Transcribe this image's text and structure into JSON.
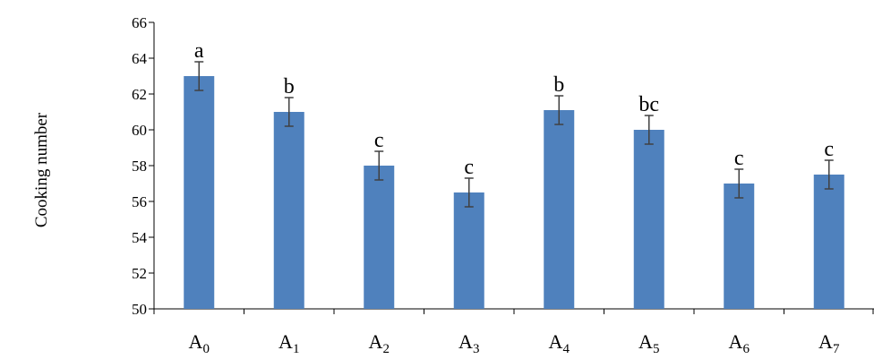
{
  "chart_data": {
    "type": "bar",
    "ylabel": "Cooking number",
    "ylim": [
      50,
      66
    ],
    "yticks": [
      50,
      52,
      54,
      56,
      58,
      60,
      62,
      64,
      66
    ],
    "grid": false,
    "legend": "none",
    "categories": [
      {
        "base": "A",
        "sub": "0"
      },
      {
        "base": "A",
        "sub": "1"
      },
      {
        "base": "A",
        "sub": "2"
      },
      {
        "base": "A",
        "sub": "3"
      },
      {
        "base": "A",
        "sub": "4"
      },
      {
        "base": "A",
        "sub": "5"
      },
      {
        "base": "A",
        "sub": "6"
      },
      {
        "base": "A",
        "sub": "7"
      }
    ],
    "values": [
      63.0,
      61.0,
      58.0,
      56.5,
      61.1,
      60.0,
      57.0,
      57.5
    ],
    "error": [
      0.8,
      0.8,
      0.8,
      0.8,
      0.8,
      0.8,
      0.8,
      0.8
    ],
    "significance_labels": [
      "a",
      "b",
      "c",
      "c",
      "b",
      "bc",
      "c",
      "c"
    ],
    "colors": {
      "bar": "#4f81bd",
      "error_bar": "#404040",
      "axis": "#000000"
    }
  }
}
